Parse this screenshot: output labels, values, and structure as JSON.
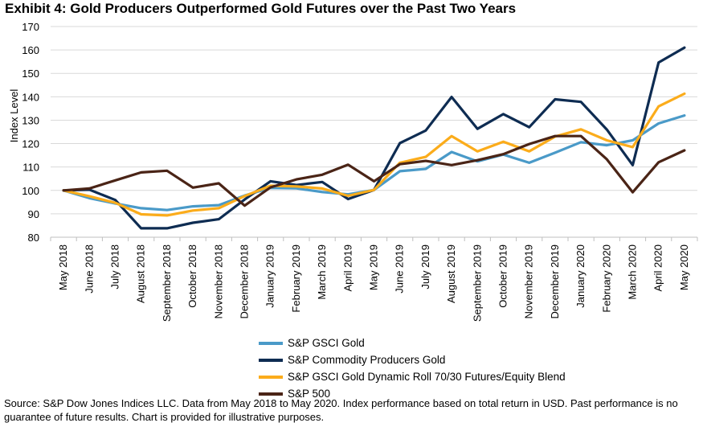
{
  "title": "Exhibit 4: Gold Producers Outperformed Gold Futures over the Past Two Years",
  "source_note": "Source: S&P Dow Jones Indices LLC. Data from May 2018 to May 2020. Index performance based on total return in USD. Past performance is no guarantee of future results. Chart is provided for illustrative purposes.",
  "chart_data": {
    "type": "line",
    "title": "Exhibit 4: Gold Producers Outperformed Gold Futures over the Past Two Years",
    "xlabel": "",
    "ylabel": "Index Level",
    "ylim": [
      80,
      170
    ],
    "yticks": [
      80,
      90,
      100,
      110,
      120,
      130,
      140,
      150,
      160,
      170
    ],
    "grid": "horizontal",
    "legend_position": "bottom",
    "categories": [
      "May 2018",
      "June 2018",
      "July 2018",
      "August 2018",
      "September 2018",
      "October 2018",
      "November 2018",
      "December 2018",
      "January 2019",
      "February 2019",
      "March 2019",
      "April 2019",
      "May 2019",
      "June 2019",
      "July 2019",
      "August 2019",
      "September 2019",
      "October 2019",
      "November 2019",
      "December 2019",
      "January 2020",
      "February 2020",
      "March 2020",
      "April 2020",
      "May 2020"
    ],
    "series": [
      {
        "name": "S&P GSCI Gold",
        "color": "#4a9ac8",
        "values": [
          100,
          96.7,
          94.4,
          92.4,
          91.6,
          93.2,
          93.7,
          97.8,
          101.1,
          100.9,
          99.3,
          98.3,
          100.2,
          108.2,
          109.2,
          116.4,
          112.4,
          115.3,
          111.8,
          116.1,
          120.6,
          119.3,
          121.4,
          128.6,
          132.0
        ]
      },
      {
        "name": "S&P Commodity Producers Gold",
        "color": "#0e2c52",
        "values": [
          100,
          100.3,
          95.9,
          83.8,
          83.8,
          86.2,
          87.7,
          96.1,
          103.9,
          102.3,
          103.6,
          96.3,
          100.2,
          120.2,
          125.6,
          139.9,
          126.3,
          132.6,
          127.0,
          138.9,
          137.8,
          126.0,
          110.8,
          154.6,
          161.0
        ]
      },
      {
        "name": "S&P GSCI Gold Dynamic Roll 70/30 Futures/Equity Blend",
        "color": "#fbac1b",
        "values": [
          100,
          97.5,
          94.7,
          89.8,
          89.3,
          91.4,
          92.4,
          97.6,
          102.0,
          101.7,
          100.8,
          97.7,
          100.2,
          111.8,
          114.3,
          123.2,
          116.7,
          120.8,
          116.7,
          123.0,
          126.1,
          121.4,
          118.5,
          135.9,
          141.3
        ]
      },
      {
        "name": "S&P 500",
        "color": "#4a2416",
        "values": [
          100,
          100.8,
          104.3,
          107.7,
          108.4,
          101.2,
          103.0,
          93.5,
          101.3,
          104.7,
          106.7,
          111.0,
          103.9,
          111.2,
          112.6,
          110.8,
          112.9,
          115.5,
          119.8,
          123.2,
          123.2,
          113.3,
          99.2,
          112.0,
          117.1
        ]
      }
    ]
  }
}
